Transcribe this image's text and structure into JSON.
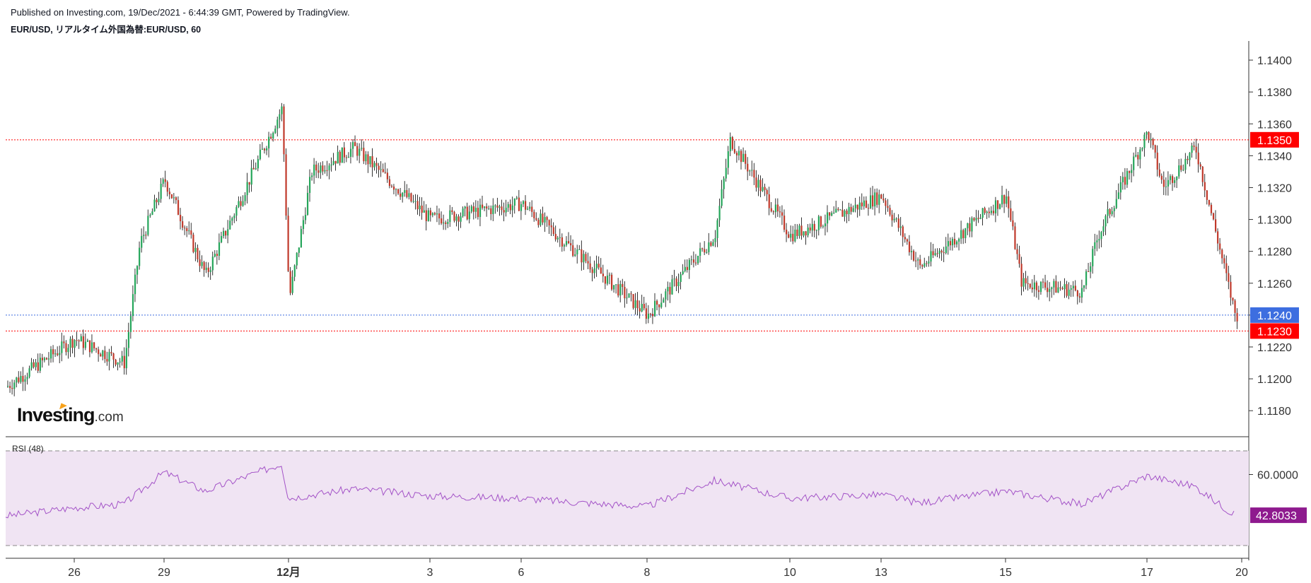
{
  "header": {
    "published": "Published on Investing.com, 19/Dec/2021 - 6:44:39 GMT, Powered by TradingView.",
    "symbol": "EUR/USD, リアルタイム外国為替:EUR/USD, 60"
  },
  "logo": {
    "main": "Investing",
    "suffix": ".com"
  },
  "colors": {
    "up": "#26a65b",
    "down": "#c0392b",
    "wick": "#000000",
    "resistance": "#ff0000",
    "current": "#3d6ee0",
    "rsi_line": "#a352c7",
    "rsi_band": "#f0e4f3",
    "rsi_badge": "#8e1a8e"
  },
  "chart_data": [
    {
      "type": "candlestick",
      "title": "EUR/USD, リアルタイム外国為替:EUR/USD, 60",
      "ylim": [
        1.1165,
        1.1412
      ],
      "y_ticks": [
        "1.1180",
        "1.1200",
        "1.1220",
        "1.1240",
        "1.1260",
        "1.1280",
        "1.1300",
        "1.1320",
        "1.1340",
        "1.1360",
        "1.1380",
        "1.1400"
      ],
      "x_ticks": [
        "26",
        "29",
        "12月",
        "3",
        "6",
        "8",
        "10",
        "13",
        "15",
        "17",
        "20"
      ],
      "x_ticks_bold": [
        "12月"
      ],
      "horizontal_lines": [
        {
          "value": 1.135,
          "label": "1.1350",
          "style": "dotted",
          "color": "#ff0000"
        },
        {
          "value": 1.124,
          "label": "1.1240",
          "style": "dotted",
          "color": "#3d6ee0"
        },
        {
          "value": 1.123,
          "label": "1.1230",
          "style": "dotted",
          "color": "#ff0000"
        }
      ],
      "approx_close_path": [
        {
          "x": "26 (start)",
          "y": 1.1195
        },
        {
          "x": "26",
          "y": 1.1225
        },
        {
          "x": "28",
          "y": 1.121
        },
        {
          "x": "28",
          "y": 1.1285
        },
        {
          "x": "29",
          "y": 1.1325
        },
        {
          "x": "30",
          "y": 1.1265
        },
        {
          "x": "12月 (pre)",
          "y": 1.137
        },
        {
          "x": "12月",
          "y": 1.125
        },
        {
          "x": "1",
          "y": 1.133
        },
        {
          "x": "2",
          "y": 1.1345
        },
        {
          "x": "3",
          "y": 1.13
        },
        {
          "x": "6",
          "y": 1.131
        },
        {
          "x": "7",
          "y": 1.1285
        },
        {
          "x": "8",
          "y": 1.124
        },
        {
          "x": "9",
          "y": 1.129
        },
        {
          "x": "9",
          "y": 1.135
        },
        {
          "x": "10",
          "y": 1.129
        },
        {
          "x": "13",
          "y": 1.1315
        },
        {
          "x": "14",
          "y": 1.127
        },
        {
          "x": "15",
          "y": 1.1315
        },
        {
          "x": "15",
          "y": 1.126
        },
        {
          "x": "16",
          "y": 1.1255
        },
        {
          "x": "16",
          "y": 1.129
        },
        {
          "x": "17",
          "y": 1.1355
        },
        {
          "x": "17",
          "y": 1.132
        },
        {
          "x": "18",
          "y": 1.1345
        },
        {
          "x": "19",
          "y": 1.124
        }
      ]
    },
    {
      "type": "line",
      "title": "RSI (48)",
      "ylim": [
        30,
        70
      ],
      "y_ticks": [
        "60.0000"
      ],
      "band": [
        70,
        30
      ],
      "current_value": "42.8033",
      "approx_values": [
        {
          "x": "26 (start)",
          "y": 42.5
        },
        {
          "x": "26",
          "y": 46.0
        },
        {
          "x": "28",
          "y": 47.5
        },
        {
          "x": "29",
          "y": 61.0
        },
        {
          "x": "30",
          "y": 53.0
        },
        {
          "x": "12月 (pre)",
          "y": 64.5
        },
        {
          "x": "12月",
          "y": 50.0
        },
        {
          "x": "2",
          "y": 54.0
        },
        {
          "x": "3",
          "y": 51.0
        },
        {
          "x": "6",
          "y": 50.0
        },
        {
          "x": "7",
          "y": 48.5
        },
        {
          "x": "8",
          "y": 46.5
        },
        {
          "x": "9",
          "y": 57.5
        },
        {
          "x": "10",
          "y": 50.0
        },
        {
          "x": "13",
          "y": 51.5
        },
        {
          "x": "14",
          "y": 48.0
        },
        {
          "x": "15",
          "y": 53.0
        },
        {
          "x": "16",
          "y": 47.5
        },
        {
          "x": "17",
          "y": 59.5
        },
        {
          "x": "18",
          "y": 55.0
        },
        {
          "x": "19",
          "y": 42.8
        }
      ]
    }
  ]
}
